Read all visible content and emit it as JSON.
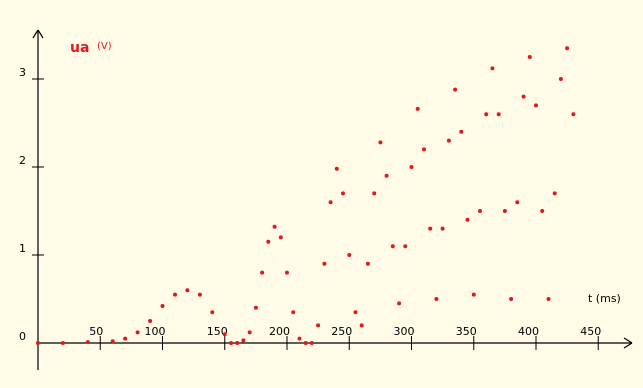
{
  "chart_data": {
    "type": "scatter",
    "title": "",
    "series_label": "ua",
    "ylabel": "(V)",
    "xlabel": "t (ms)",
    "x_ticks": [
      "50",
      "100",
      "150",
      "200",
      "250",
      "300",
      "350",
      "400",
      "450"
    ],
    "y_ticks": [
      "0",
      "1",
      "2",
      "3"
    ],
    "xlim": [
      0,
      460
    ],
    "ylim": [
      -0.2,
      3.5
    ],
    "grid": false,
    "colors": {
      "background": "#fffbe7",
      "axes": "#000000",
      "series": "#e0191f"
    },
    "series": [
      {
        "name": "ua",
        "description_points": "sampled points approximating the recorded waveform",
        "x": [
          0,
          20,
          40,
          60,
          70,
          80,
          90,
          100,
          110,
          120,
          130,
          140,
          150,
          155,
          160,
          165,
          170,
          175,
          180,
          185,
          190,
          195,
          200,
          205,
          210,
          215,
          220,
          225,
          230,
          235,
          240,
          245,
          250,
          255,
          260,
          265,
          270,
          275,
          280,
          285,
          290,
          295,
          300,
          305,
          310,
          315,
          320,
          325,
          330,
          335,
          340,
          345,
          350,
          355,
          360,
          365,
          370,
          375,
          380,
          385,
          390,
          395,
          400,
          405,
          410,
          415,
          420,
          425,
          430
        ],
        "y": [
          0,
          0,
          0.01,
          0.02,
          0.05,
          0.12,
          0.25,
          0.42,
          0.55,
          0.6,
          0.55,
          0.35,
          0.1,
          0,
          0,
          0.03,
          0.12,
          0.4,
          0.8,
          1.15,
          1.32,
          1.2,
          0.8,
          0.35,
          0.05,
          0,
          0,
          0.2,
          0.9,
          1.6,
          1.98,
          1.7,
          1.0,
          0.35,
          0.2,
          0.9,
          1.7,
          2.28,
          1.9,
          1.1,
          0.45,
          1.1,
          2.0,
          2.66,
          2.2,
          1.3,
          0.5,
          1.3,
          2.3,
          2.88,
          2.4,
          1.4,
          0.55,
          1.5,
          2.6,
          3.12,
          2.6,
          1.5,
          0.5,
          1.6,
          2.8,
          3.25,
          2.7,
          1.5,
          0.5,
          1.7,
          3.0,
          3.35,
          2.6
        ]
      }
    ]
  }
}
